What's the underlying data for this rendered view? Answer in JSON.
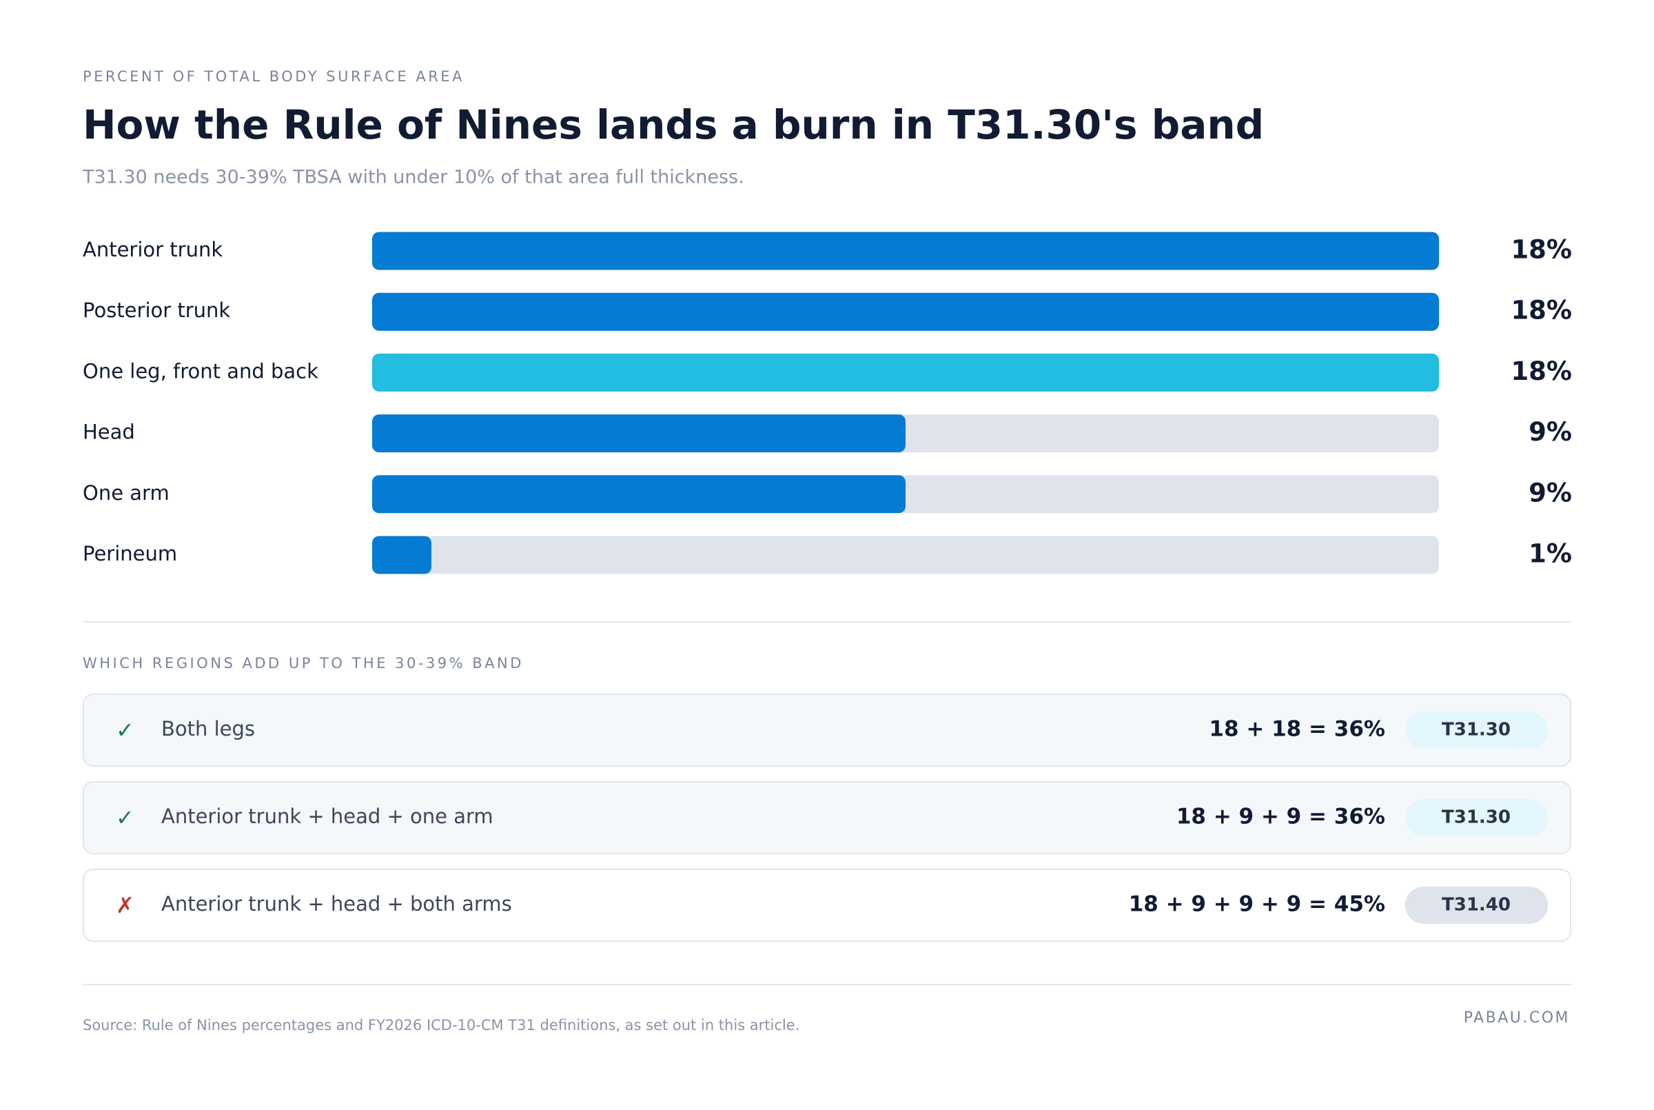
{
  "chart_data": {
    "type": "bar",
    "orientation": "horizontal",
    "eyebrow": "PERCENT OF TOTAL BODY SURFACE AREA",
    "title": "How the Rule of Nines lands a burn in T31.30's band",
    "subtitle": "T31.30 needs 30-39% TBSA with under 10% of that area full thickness.",
    "categories": [
      "Anterior trunk",
      "Posterior trunk",
      "One leg, front and back",
      "Head",
      "One arm",
      "Perineum"
    ],
    "values": [
      18,
      18,
      18,
      9,
      9,
      1
    ],
    "value_labels": [
      "18%",
      "18%",
      "18%",
      "9%",
      "9%",
      "1%"
    ],
    "colors": [
      "#067bd3",
      "#067bd3",
      "#22bde0",
      "#067bd3",
      "#067bd3",
      "#067bd3"
    ],
    "track_color": "#dfe3ec",
    "xlim": [
      0,
      18
    ]
  },
  "combinations": {
    "heading": "WHICH REGIONS ADD UP TO THE 30-39% BAND",
    "rows": [
      {
        "mark": "✓",
        "mark_color": "#1f7a4d",
        "regions": "Both legs",
        "sum": "18 + 18 = 36%",
        "code": "T31.30",
        "row_color": "#f4f8fb",
        "badge_color": "#e3f6fb"
      },
      {
        "mark": "✓",
        "mark_color": "#1f7a4d",
        "regions": "Anterior trunk + head + one arm",
        "sum": "18 + 9 + 9 = 36%",
        "code": "T31.30",
        "row_color": "#f4f8fb",
        "badge_color": "#e3f6fb"
      },
      {
        "mark": "✗",
        "mark_color": "#c0392b",
        "regions": "Anterior trunk + head + both arms",
        "sum": "18 + 9 + 9 + 9 = 45%",
        "code": "T31.40",
        "row_color": "#ffffff",
        "badge_color": "#dfe3ec"
      }
    ]
  },
  "footer": {
    "source": "Source: Rule of Nines percentages and FY2026 ICD-10-CM T31 definitions, as set out in this article.",
    "brand": "PABAU.COM"
  }
}
